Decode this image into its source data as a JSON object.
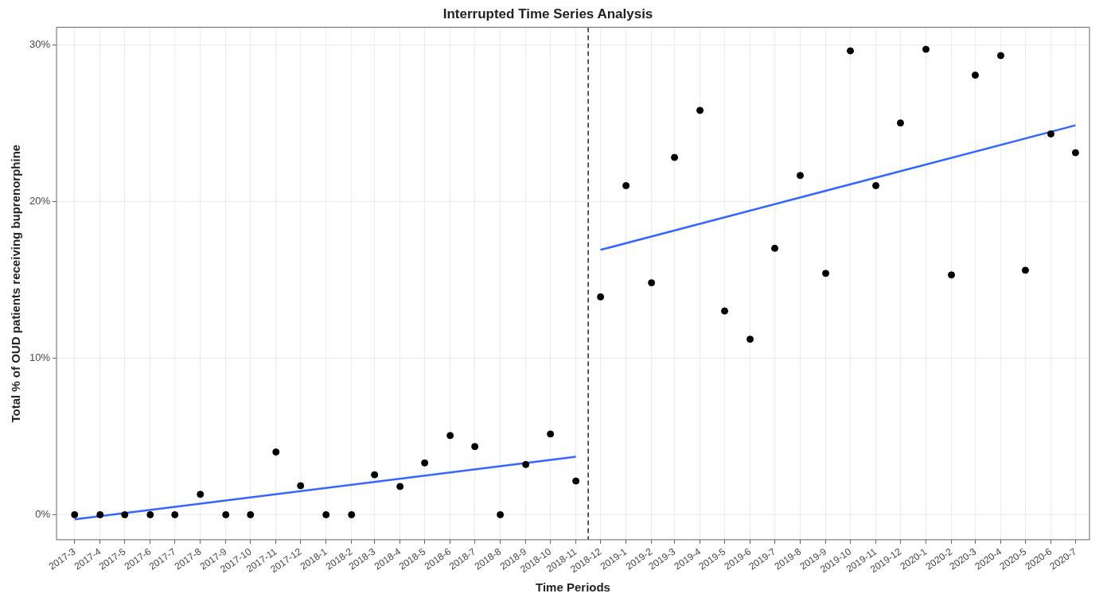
{
  "chart_data": {
    "type": "scatter",
    "title": "Interrupted Time Series Analysis",
    "xlabel": "Time Periods",
    "ylabel": "Total % of OUD patients receiving buprenorphine",
    "x": [
      "2017-03",
      "2017-04",
      "2017-05",
      "2017-06",
      "2017-07",
      "2017-08",
      "2017-09",
      "2017-10",
      "2017-11",
      "2017-12",
      "2018-01",
      "2018-02",
      "2018-03",
      "2018-04",
      "2018-05",
      "2018-06",
      "2018-07",
      "2018-08",
      "2018-09",
      "2018-10",
      "2018-11",
      "2018-12",
      "2019-01",
      "2019-02",
      "2019-03",
      "2019-04",
      "2019-05",
      "2019-06",
      "2019-07",
      "2019-08",
      "2019-09",
      "2019-10",
      "2019-11",
      "2019-12",
      "2020-01",
      "2020-02",
      "2020-03",
      "2020-04",
      "2020-05",
      "2020-06",
      "2020-07"
    ],
    "series": [
      {
        "color": "#000000",
        "values": [
          0,
          0,
          0,
          0,
          0,
          1.3,
          0,
          0,
          4.0,
          1.85,
          0,
          0,
          2.55,
          1.8,
          3.3,
          5.05,
          4.35,
          0,
          3.2,
          5.15,
          2.15,
          13.9,
          21.0,
          14.8,
          22.8,
          25.8,
          13.0,
          11.2,
          17.0,
          21.65,
          15.4,
          29.6,
          21.0,
          25.0,
          29.7,
          15.3,
          28.05,
          29.3,
          15.6,
          24.3,
          23.1
        ]
      },
      {
        "type": "line",
        "color": "#3366ff",
        "marker": "none",
        "x": [
          "2017-03",
          "2018-11"
        ],
        "values": [
          -0.3,
          3.7
        ]
      },
      {
        "type": "line",
        "color": "#3366ff",
        "marker": "none",
        "x": [
          "2018-12",
          "2020-07"
        ],
        "values": [
          16.9,
          24.85
        ]
      }
    ],
    "xlim": [
      "2017-02-07",
      "2020-07-18"
    ],
    "xticks": [
      {
        "value": "2017-03",
        "label": "2017-3"
      },
      {
        "value": "2017-04",
        "label": "2017-4"
      },
      {
        "value": "2017-05",
        "label": "2017-5"
      },
      {
        "value": "2017-06",
        "label": "2017-6"
      },
      {
        "value": "2017-07",
        "label": "2017-7"
      },
      {
        "value": "2017-08",
        "label": "2017-8"
      },
      {
        "value": "2017-09",
        "label": "2017-9"
      },
      {
        "value": "2017-10",
        "label": "2017-10"
      },
      {
        "value": "2017-11",
        "label": "2017-11"
      },
      {
        "value": "2017-12",
        "label": "2017-12"
      },
      {
        "value": "2018-01",
        "label": "2018-1"
      },
      {
        "value": "2018-02",
        "label": "2018-2"
      },
      {
        "value": "2018-03",
        "label": "2018-3"
      },
      {
        "value": "2018-04",
        "label": "2018-4"
      },
      {
        "value": "2018-05",
        "label": "2018-5"
      },
      {
        "value": "2018-06",
        "label": "2018-6"
      },
      {
        "value": "2018-07",
        "label": "2018-7"
      },
      {
        "value": "2018-08",
        "label": "2018-8"
      },
      {
        "value": "2018-09",
        "label": "2018-9"
      },
      {
        "value": "2018-10",
        "label": "2018-10"
      },
      {
        "value": "2018-11",
        "label": "2018-11"
      },
      {
        "value": "2018-12",
        "label": "2018-12"
      },
      {
        "value": "2019-01",
        "label": "2019-1"
      },
      {
        "value": "2019-02",
        "label": "2019-2"
      },
      {
        "value": "2019-03",
        "label": "2019-3"
      },
      {
        "value": "2019-04",
        "label": "2019-4"
      },
      {
        "value": "2019-05",
        "label": "2019-5"
      },
      {
        "value": "2019-06",
        "label": "2019-6"
      },
      {
        "value": "2019-07",
        "label": "2019-7"
      },
      {
        "value": "2019-08",
        "label": "2019-8"
      },
      {
        "value": "2019-09",
        "label": "2019-9"
      },
      {
        "value": "2019-10",
        "label": "2019-10"
      },
      {
        "value": "2019-11",
        "label": "2019-11"
      },
      {
        "value": "2019-12",
        "label": "2019-12"
      },
      {
        "value": "2020-01",
        "label": "2020-1"
      },
      {
        "value": "2020-02",
        "label": "2020-2"
      },
      {
        "value": "2020-03",
        "label": "2020-3"
      },
      {
        "value": "2020-04",
        "label": "2020-4"
      },
      {
        "value": "2020-05",
        "label": "2020-5"
      },
      {
        "value": "2020-06",
        "label": "2020-6"
      },
      {
        "value": "2020-07",
        "label": "2020-7"
      }
    ],
    "ylim": [
      -1.6,
      31.1
    ],
    "yticks": [
      {
        "value": 0,
        "label": "0%"
      },
      {
        "value": 10,
        "label": "10%"
      },
      {
        "value": 20,
        "label": "20%"
      },
      {
        "value": 30,
        "label": "30%"
      }
    ],
    "ref_lines": [
      {
        "axis": "x",
        "value": "2018-11-16",
        "color": "#000000",
        "line_style": "dashed"
      }
    ],
    "grid": true,
    "legend": false,
    "marker": "circle"
  }
}
